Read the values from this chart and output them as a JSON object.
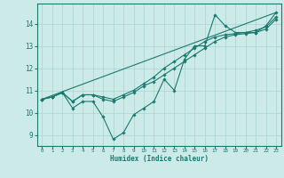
{
  "xlabel": "Humidex (Indice chaleur)",
  "bg_color": "#cceae8",
  "line_color": "#1a7a6e",
  "grid_color": "#aad4d0",
  "xlim": [
    -0.5,
    23.5
  ],
  "ylim": [
    8.5,
    14.9
  ],
  "xticks": [
    0,
    1,
    2,
    3,
    4,
    5,
    6,
    7,
    8,
    9,
    10,
    11,
    12,
    13,
    14,
    15,
    16,
    17,
    18,
    19,
    20,
    21,
    22,
    23
  ],
  "yticks": [
    9,
    10,
    11,
    12,
    13,
    14
  ],
  "line1_x": [
    0,
    1,
    2,
    3,
    4,
    5,
    6,
    7,
    8,
    9,
    10,
    11,
    12,
    13,
    14,
    15,
    16,
    17,
    18,
    19,
    20,
    21,
    22,
    23
  ],
  "line1_y": [
    10.6,
    10.7,
    10.9,
    10.2,
    10.5,
    10.5,
    9.8,
    8.8,
    9.1,
    9.9,
    10.2,
    10.5,
    11.5,
    11.0,
    12.4,
    13.0,
    13.0,
    14.4,
    13.9,
    13.6,
    13.6,
    13.6,
    13.9,
    14.5
  ],
  "line2_x": [
    0,
    1,
    2,
    3,
    4,
    5,
    6,
    7,
    8,
    9,
    10,
    11,
    12,
    13,
    14,
    15,
    16,
    17,
    18,
    19,
    20,
    21,
    22,
    23
  ],
  "line2_y": [
    10.6,
    10.7,
    10.9,
    10.5,
    10.8,
    10.8,
    10.6,
    10.5,
    10.7,
    10.9,
    11.2,
    11.4,
    11.7,
    12.0,
    12.3,
    12.6,
    12.9,
    13.2,
    13.4,
    13.5,
    13.55,
    13.6,
    13.75,
    14.2
  ],
  "line3_x": [
    0,
    1,
    2,
    3,
    4,
    5,
    6,
    7,
    8,
    9,
    10,
    11,
    12,
    13,
    14,
    15,
    16,
    17,
    18,
    19,
    20,
    21,
    22,
    23
  ],
  "line3_y": [
    10.6,
    10.7,
    10.9,
    10.5,
    10.8,
    10.8,
    10.7,
    10.6,
    10.8,
    11.0,
    11.3,
    11.6,
    12.0,
    12.3,
    12.6,
    12.9,
    13.2,
    13.4,
    13.5,
    13.55,
    13.6,
    13.7,
    13.85,
    14.3
  ],
  "line4_x": [
    0,
    23
  ],
  "line4_y": [
    10.6,
    14.5
  ],
  "marker": "D",
  "markersize": 1.8,
  "linewidth": 0.8
}
